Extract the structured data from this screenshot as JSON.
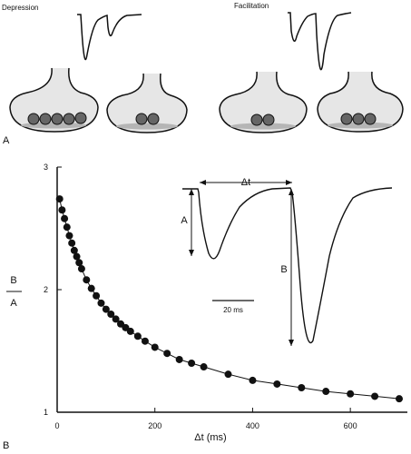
{
  "panel_a": {
    "label": "A",
    "left_title": "Depression",
    "right_title": "Facilitation"
  },
  "panel_b": {
    "label": "B",
    "inset": {
      "delta_label": "Δt",
      "a_label": "A",
      "b_label": "B",
      "scale_label": "20 ms"
    }
  },
  "chart_data": {
    "type": "scatter",
    "xlabel": "Δt  (ms)",
    "ylabel_numerator": "B",
    "ylabel_denominator": "A",
    "xlim": [
      0,
      700
    ],
    "ylim": [
      1,
      3
    ],
    "xticks": [
      "0",
      "200",
      "400",
      "600"
    ],
    "yticks": [
      "1",
      "2",
      "3"
    ],
    "fit_line": true,
    "x": [
      5,
      10,
      15,
      20,
      25,
      30,
      35,
      40,
      45,
      50,
      60,
      70,
      80,
      90,
      100,
      110,
      120,
      130,
      140,
      150,
      165,
      180,
      200,
      225,
      250,
      275,
      300,
      350,
      400,
      450,
      500,
      550,
      600,
      650,
      700
    ],
    "y": [
      2.74,
      2.65,
      2.58,
      2.51,
      2.44,
      2.38,
      2.32,
      2.27,
      2.22,
      2.17,
      2.08,
      2.01,
      1.95,
      1.89,
      1.84,
      1.8,
      1.76,
      1.72,
      1.69,
      1.66,
      1.62,
      1.58,
      1.53,
      1.48,
      1.43,
      1.4,
      1.37,
      1.31,
      1.26,
      1.23,
      1.2,
      1.17,
      1.15,
      1.13,
      1.11
    ]
  }
}
